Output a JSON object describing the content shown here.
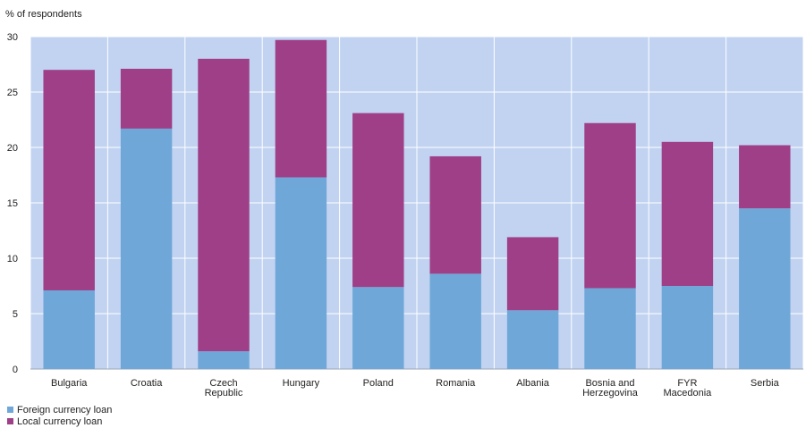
{
  "chart_data": {
    "type": "bar",
    "stacked": true,
    "ylabel": "% of respondents",
    "ylim": [
      0,
      30
    ],
    "yticks": [
      0,
      5,
      10,
      15,
      20,
      25,
      30
    ],
    "categories": [
      [
        "Bulgaria"
      ],
      [
        "Croatia"
      ],
      [
        "Czech",
        "Republic"
      ],
      [
        "Hungary"
      ],
      [
        "Poland"
      ],
      [
        "Romania"
      ],
      [
        "Albania"
      ],
      [
        "Bosnia and",
        "Herzegovina"
      ],
      [
        "FYR",
        "Macedonia"
      ],
      [
        "Serbia"
      ]
    ],
    "series": [
      {
        "name": "Foreign currency loan",
        "color": "#6fa8d8",
        "values": [
          7.1,
          21.7,
          1.6,
          17.3,
          7.4,
          8.6,
          5.3,
          7.3,
          7.5,
          14.5
        ]
      },
      {
        "name": "Local currency loan",
        "color": "#9e3f87",
        "values": [
          19.9,
          5.4,
          26.4,
          12.4,
          15.7,
          10.6,
          6.6,
          14.9,
          13.0,
          5.7
        ]
      }
    ],
    "plot_background": "#c2d3f2",
    "grid": true,
    "legend_position": "bottom-left"
  }
}
